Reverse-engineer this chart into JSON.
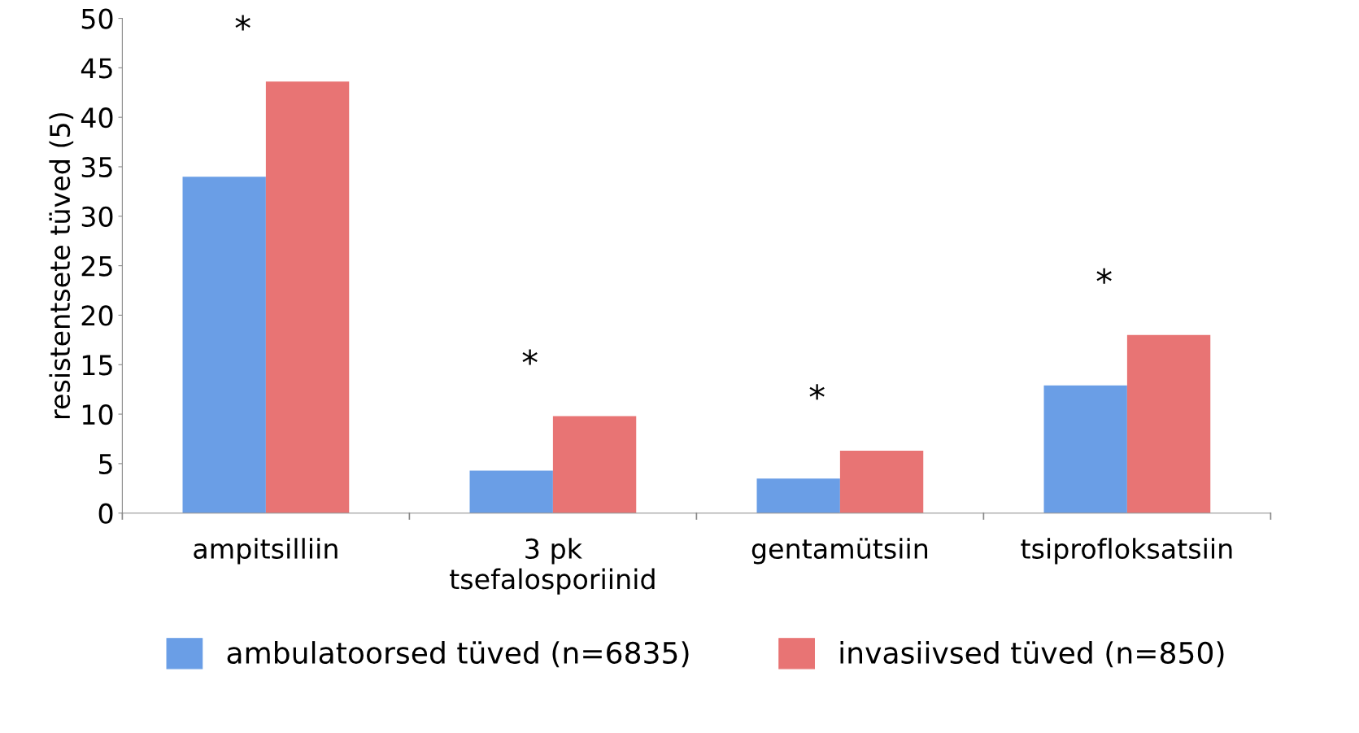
{
  "chart_data": {
    "type": "bar",
    "ylabel": "resistentsete tüved (5)",
    "categories": [
      "ampitsilliin",
      "3 pk\ntsefalosporiinid",
      "gentamütsiin",
      "tsiprofloksatsiin"
    ],
    "series": [
      {
        "name": "ambulatoorsed tüved (n=6835)",
        "color": "#6a9ee6",
        "values": [
          34.0,
          4.3,
          3.5,
          12.9
        ]
      },
      {
        "name": "invasiivsed tüved (n=850)",
        "color": "#e87474",
        "values": [
          43.6,
          9.8,
          6.3,
          18.0
        ]
      }
    ],
    "ylim": [
      0,
      50
    ],
    "yticks": [
      0,
      5,
      10,
      15,
      20,
      25,
      30,
      35,
      40,
      45,
      50
    ],
    "annotations": [
      "*",
      "*",
      "*",
      "*"
    ],
    "grid": false,
    "legend": "bottom"
  }
}
